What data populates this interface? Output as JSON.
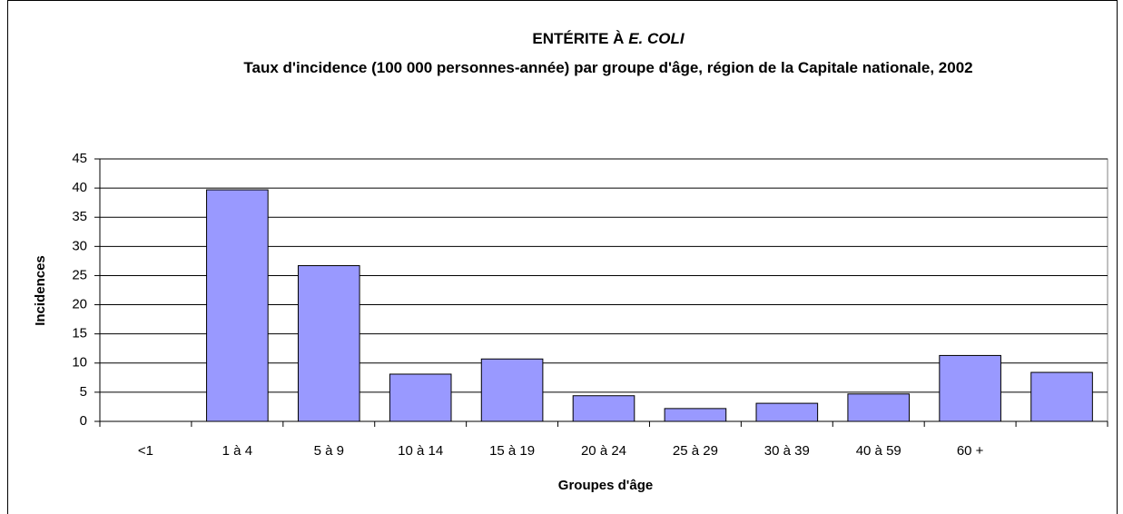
{
  "chart_data": {
    "type": "bar",
    "title": "ENTÉRITE À",
    "title_italic": "E. COLI",
    "subtitle": "Taux d'incidence (100 000 personnes-année) par groupe d'âge, région de la Capitale nationale, 2002",
    "x_label": "Groupes d'âge",
    "y_label": "Incidences",
    "categories": [
      "<1",
      "1 à 4",
      "5 à 9",
      "10 à 14",
      "15 à 19",
      "20 à 24",
      "25 à 29",
      "30 à 39",
      "40 à 59",
      "60 +",
      null
    ],
    "values": [
      0,
      39.7,
      26.7,
      8.1,
      10.7,
      4.4,
      2.2,
      3.1,
      4.7,
      11.3,
      8.4
    ],
    "color": "#9999ff",
    "ylim": [
      0,
      45
    ],
    "yticks": [
      0,
      5,
      10,
      15,
      20,
      25,
      30,
      35,
      40,
      45
    ],
    "grid": true
  }
}
